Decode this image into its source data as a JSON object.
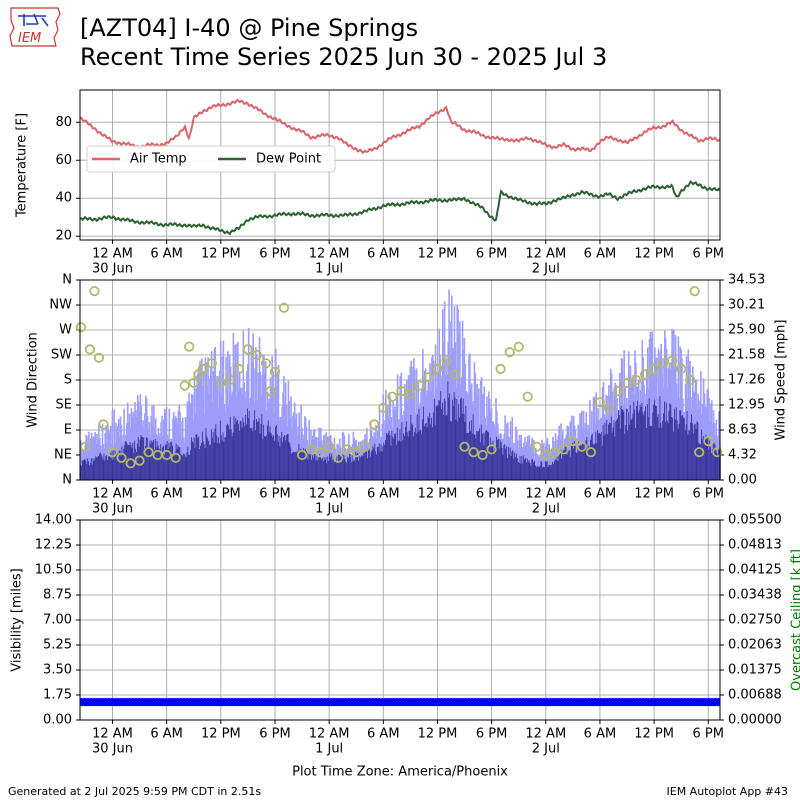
{
  "header": {
    "title_line1": "[AZT04] I-40 @ Pine Springs",
    "title_line2": "Recent Time Series 2025 Jun 30 - 2025 Jul 3",
    "logo_text": "IEM"
  },
  "footer": {
    "generated": "Generated at 2 Jul 2025 9:59 PM CDT in 2.51s",
    "app": "IEM Autoplot App #43"
  },
  "time_axis": {
    "label": "Plot Time Zone: America/Phoenix",
    "range_hours": [
      -3.6,
      67.3
    ],
    "ticks": [
      {
        "hour": 0,
        "label": "12 AM",
        "date": "30 Jun"
      },
      {
        "hour": 6,
        "label": "6 AM"
      },
      {
        "hour": 12,
        "label": "12 PM"
      },
      {
        "hour": 18,
        "label": "6 PM"
      },
      {
        "hour": 24,
        "label": "12 AM",
        "date": "1 Jul"
      },
      {
        "hour": 30,
        "label": "6 AM"
      },
      {
        "hour": 36,
        "label": "12 PM"
      },
      {
        "hour": 42,
        "label": "6 PM"
      },
      {
        "hour": 48,
        "label": "12 AM",
        "date": "2 Jul"
      },
      {
        "hour": 54,
        "label": "6 AM"
      },
      {
        "hour": 60,
        "label": "12 PM"
      },
      {
        "hour": 66,
        "label": "6 PM"
      }
    ]
  },
  "chart_data": [
    {
      "type": "line",
      "ylabel": "Temperature [F]",
      "ylim": [
        18,
        97
      ],
      "yticks": [
        20,
        40,
        60,
        80
      ],
      "grid": true,
      "legend": "upper-left",
      "series": [
        {
          "name": "Air Temp",
          "color": "#d9646b",
          "x": [
            -3.6,
            -2,
            -1,
            0,
            1,
            2,
            3,
            4,
            5,
            6,
            7,
            8,
            8.5,
            9,
            10,
            11,
            12,
            13,
            14,
            15,
            16,
            17,
            18,
            19,
            20,
            21,
            22,
            23,
            24,
            25,
            26,
            27,
            28,
            29,
            30,
            31,
            32,
            33,
            34,
            35,
            36,
            37,
            37.5,
            38,
            39,
            40,
            41,
            42,
            43,
            44,
            45,
            46,
            47,
            48,
            49,
            50,
            51,
            52,
            53,
            54,
            55,
            56,
            57,
            58,
            59,
            60,
            61,
            62,
            63,
            64,
            65,
            66,
            67.3
          ],
          "y": [
            82,
            77,
            73,
            70,
            69,
            68,
            67,
            68,
            68,
            69,
            72,
            78,
            71,
            82,
            86,
            88,
            89,
            90,
            91,
            90,
            87,
            84,
            82,
            79,
            77,
            75,
            72,
            73,
            73,
            72,
            68,
            66,
            64,
            66,
            69,
            72,
            74,
            76,
            78,
            82,
            85,
            88,
            80,
            79,
            76,
            75,
            73,
            72,
            71,
            71,
            70,
            72,
            70,
            68,
            67,
            68,
            66,
            66,
            65,
            70,
            72,
            71,
            69,
            72,
            75,
            77,
            78,
            80,
            76,
            73,
            70,
            72,
            70
          ]
        },
        {
          "name": "Dew Point",
          "color": "#2c6130",
          "x": [
            -3.6,
            -2,
            0,
            2,
            4,
            6,
            8,
            9,
            10,
            11,
            12,
            13,
            14,
            15,
            16,
            18,
            20,
            22,
            24,
            26,
            28,
            30,
            32,
            34,
            36,
            38,
            39,
            40,
            41,
            42,
            42.5,
            43,
            44,
            45,
            46,
            47,
            48,
            49,
            50,
            51,
            52,
            53,
            54,
            55,
            56,
            57,
            58,
            59,
            60,
            61,
            62,
            62.5,
            63,
            64,
            65,
            66,
            67.3
          ],
          "y": [
            29,
            29,
            30,
            28,
            27,
            26,
            26,
            25,
            26,
            24,
            23,
            22,
            24,
            29,
            30,
            31,
            32,
            31,
            31,
            31,
            33,
            36,
            37,
            38,
            39,
            39,
            40,
            37,
            35,
            30,
            28,
            43,
            41,
            39,
            38,
            37,
            37,
            39,
            40,
            42,
            43,
            42,
            41,
            42,
            40,
            42,
            44,
            45,
            46,
            46,
            46,
            40,
            44,
            48,
            47,
            45,
            44
          ]
        }
      ]
    },
    {
      "type": "bar",
      "ylabel": "Wind Direction",
      "y2label": "Wind Speed [mph]",
      "ylim": [
        0,
        360
      ],
      "y2lim": [
        0,
        34.53
      ],
      "direction_ticks": [
        "N",
        "NE",
        "E",
        "SE",
        "S",
        "SW",
        "W",
        "NW",
        "N"
      ],
      "speed_ticks": [
        "0.00",
        "4.32",
        "8.63",
        "12.95",
        "17.26",
        "21.58",
        "25.90",
        "30.21",
        "34.53"
      ],
      "grid": true,
      "gust_color": "#9d9dfa",
      "speed_color": "#38369a",
      "dir_color": "#b5b86a",
      "gust_profile": {
        "x": [
          -3.6,
          0,
          3,
          6,
          8,
          9,
          12,
          15,
          18,
          20,
          22,
          24,
          26,
          28,
          30,
          32,
          34,
          36,
          37,
          39,
          40,
          42,
          43,
          45,
          47,
          48,
          50,
          52,
          54,
          56,
          58,
          60,
          62,
          64,
          66,
          67.3
        ],
        "y": [
          6,
          11,
          13,
          12,
          11,
          18,
          21,
          24,
          20,
          13,
          9,
          8,
          7,
          8,
          14,
          17,
          21,
          24,
          31,
          23,
          19,
          13,
          12,
          8,
          6,
          7,
          9,
          11,
          14,
          19,
          21,
          24,
          23,
          20,
          14,
          10
        ]
      },
      "speed_profile": {
        "x": [
          -3.6,
          0,
          3,
          6,
          8,
          9,
          12,
          15,
          18,
          20,
          22,
          24,
          26,
          28,
          30,
          32,
          34,
          36,
          37,
          39,
          40,
          42,
          43,
          45,
          47,
          48,
          50,
          52,
          54,
          56,
          58,
          60,
          62,
          64,
          66,
          67.3
        ],
        "y": [
          3,
          5,
          7,
          6,
          5,
          7,
          9,
          11,
          9,
          6,
          4,
          4,
          4,
          5,
          7,
          9,
          11,
          13,
          15,
          12,
          10,
          7,
          6,
          4,
          3,
          3,
          5,
          7,
          8,
          11,
          12,
          13,
          12,
          10,
          7,
          5
        ]
      },
      "direction_points": {
        "x": [
          -3.5,
          -3,
          -2.5,
          -2,
          -1.5,
          -1,
          0,
          1,
          2,
          3,
          4,
          5,
          6,
          7,
          8,
          8.5,
          9,
          9.5,
          10,
          11,
          12,
          13,
          14,
          15,
          16,
          17,
          17.5,
          18,
          19,
          21,
          22,
          23,
          24,
          25,
          26,
          27,
          28,
          29,
          30,
          31,
          32,
          33,
          34,
          35,
          36,
          37,
          38,
          39,
          40,
          41,
          42,
          43,
          44,
          45,
          46,
          47,
          48,
          49,
          50,
          51,
          52,
          53,
          54,
          55,
          56,
          57,
          58,
          59,
          60,
          61,
          62,
          63,
          64,
          64.5,
          65,
          66,
          67
        ],
        "y": [
          275,
          60,
          235,
          340,
          220,
          100,
          50,
          40,
          30,
          35,
          50,
          45,
          45,
          40,
          170,
          240,
          175,
          190,
          200,
          210,
          175,
          180,
          200,
          235,
          225,
          210,
          160,
          195,
          310,
          45,
          55,
          50,
          60,
          40,
          55,
          50,
          60,
          100,
          130,
          150,
          160,
          155,
          170,
          185,
          200,
          215,
          190,
          60,
          50,
          45,
          55,
          200,
          230,
          240,
          150,
          60,
          45,
          50,
          55,
          70,
          60,
          50,
          140,
          130,
          160,
          175,
          180,
          190,
          200,
          210,
          215,
          200,
          180,
          340,
          50,
          70,
          50
        ]
      }
    },
    {
      "type": "line",
      "ylabel": "Visibility [miles]",
      "y2label": "Overcast Ceiling [k ft]",
      "ylim": [
        0,
        14
      ],
      "y2lim": [
        0,
        0.055
      ],
      "yticks": [
        "0.00",
        "1.75",
        "3.50",
        "5.25",
        "7.00",
        "8.75",
        "10.50",
        "12.25",
        "14.00"
      ],
      "y2ticks": [
        "0.00000",
        "0.00688",
        "0.01375",
        "0.02063",
        "0.02750",
        "0.03438",
        "0.04125",
        "0.04813",
        "0.05500"
      ],
      "grid": true,
      "series": [
        {
          "color": "#0000ff",
          "x": [
            -3.6,
            67.3
          ],
          "y": [
            1.25,
            1.25
          ]
        }
      ]
    }
  ]
}
